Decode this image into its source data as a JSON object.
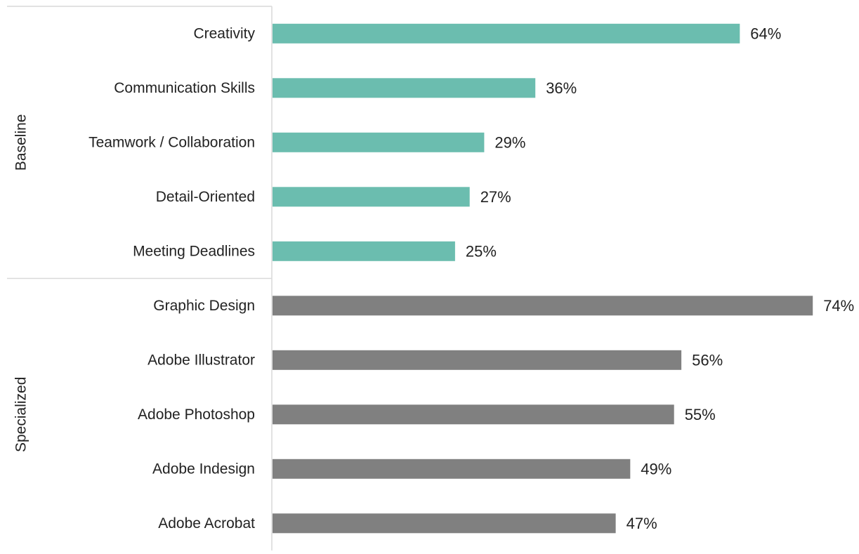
{
  "chart_data": {
    "type": "bar",
    "orientation": "horizontal",
    "xlim": [
      0,
      0.76
    ],
    "grid": false,
    "legend": "none",
    "value_format": "percent",
    "groups": [
      {
        "name": "Baseline",
        "color": "#6bbdaf",
        "categories": [
          "Creativity",
          "Communication Skills",
          "Teamwork / Collaboration",
          "Detail-Oriented",
          "Meeting Deadlines"
        ],
        "values": [
          0.64,
          0.36,
          0.29,
          0.27,
          0.25
        ],
        "value_labels": [
          "64%",
          "36%",
          "29%",
          "27%",
          "25%"
        ]
      },
      {
        "name": "Specialized",
        "color": "#808080",
        "categories": [
          "Graphic Design",
          "Adobe Illustrator",
          "Adobe Photoshop",
          "Adobe Indesign",
          "Adobe Acrobat"
        ],
        "values": [
          0.74,
          0.56,
          0.55,
          0.49,
          0.47
        ],
        "value_labels": [
          "74%",
          "56%",
          "55%",
          "49%",
          "47%"
        ]
      }
    ]
  }
}
